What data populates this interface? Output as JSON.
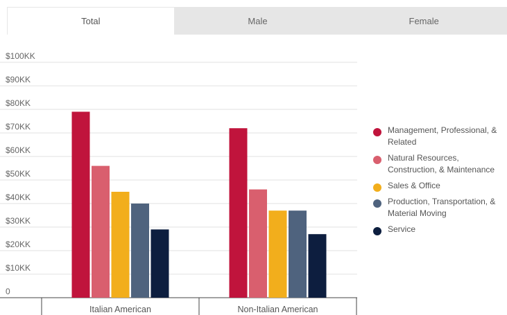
{
  "tabs": [
    {
      "label": "Total",
      "active": true
    },
    {
      "label": "Male",
      "active": false
    },
    {
      "label": "Female",
      "active": false
    }
  ],
  "chart_data": {
    "type": "bar",
    "categories": [
      "Italian American",
      "Non-Italian American"
    ],
    "series": [
      {
        "name": "Management, Professional, & Related",
        "color": "#c0143c",
        "values": [
          79,
          72
        ]
      },
      {
        "name": "Natural Resources, Construction, & Maintenance",
        "color": "#d95f6e",
        "values": [
          56,
          46
        ]
      },
      {
        "name": "Sales & Office",
        "color": "#f2ae1c",
        "values": [
          45,
          37
        ]
      },
      {
        "name": "Production, Transportation, & Material Moving",
        "color": "#4f637e",
        "values": [
          40,
          37
        ]
      },
      {
        "name": "Service",
        "color": "#0d1e3f",
        "values": [
          29,
          27
        ]
      }
    ],
    "ylim": [
      0,
      100
    ],
    "yticks": [
      {
        "value": 0,
        "label": "0"
      },
      {
        "value": 10,
        "label": "$10KK"
      },
      {
        "value": 20,
        "label": "$20KK"
      },
      {
        "value": 30,
        "label": "$30KK"
      },
      {
        "value": 40,
        "label": "$40KK"
      },
      {
        "value": 50,
        "label": "$50KK"
      },
      {
        "value": 60,
        "label": "$60KK"
      },
      {
        "value": 70,
        "label": "$70KK"
      },
      {
        "value": 80,
        "label": "$80KK"
      },
      {
        "value": 90,
        "label": "$90KK"
      },
      {
        "value": 100,
        "label": "$100KK"
      }
    ],
    "grid": true,
    "legend_position": "right"
  }
}
